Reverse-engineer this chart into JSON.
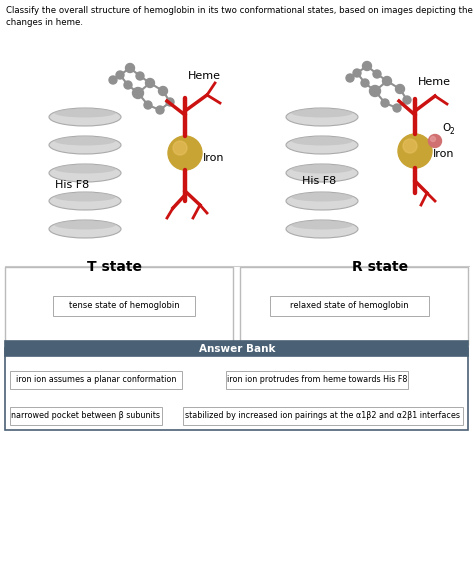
{
  "title_text": "Classify the overall structure of hemoglobin in its two conformational states, based on images depicting the conformational\nchanges in heme.",
  "t_state_label": "T state",
  "r_state_label": "R state",
  "box1_text": "tense state of hemoglobin",
  "box2_text": "relaxed state of hemoglobin",
  "answer_bank_title": "Answer Bank",
  "answer_items": [
    "iron ion assumes a planar conformation",
    "iron ion protrudes from heme towards His F8",
    "narrowed pocket between β subunits",
    "stabilized by increased ion pairings at the α1β2 and α2β1 interfaces"
  ],
  "bg_color": "#ffffff",
  "answer_bank_header_color": "#4a6074",
  "answer_bank_border_color": "#4a6074",
  "box_border_color": "#aaaaaa",
  "answer_item_border_color": "#999999",
  "helix_color": "#c0c0c0",
  "iron_color": "#c8a435",
  "red_color": "#cc1111",
  "gray_mol_color": "#909090",
  "o2_color": "#d07070"
}
